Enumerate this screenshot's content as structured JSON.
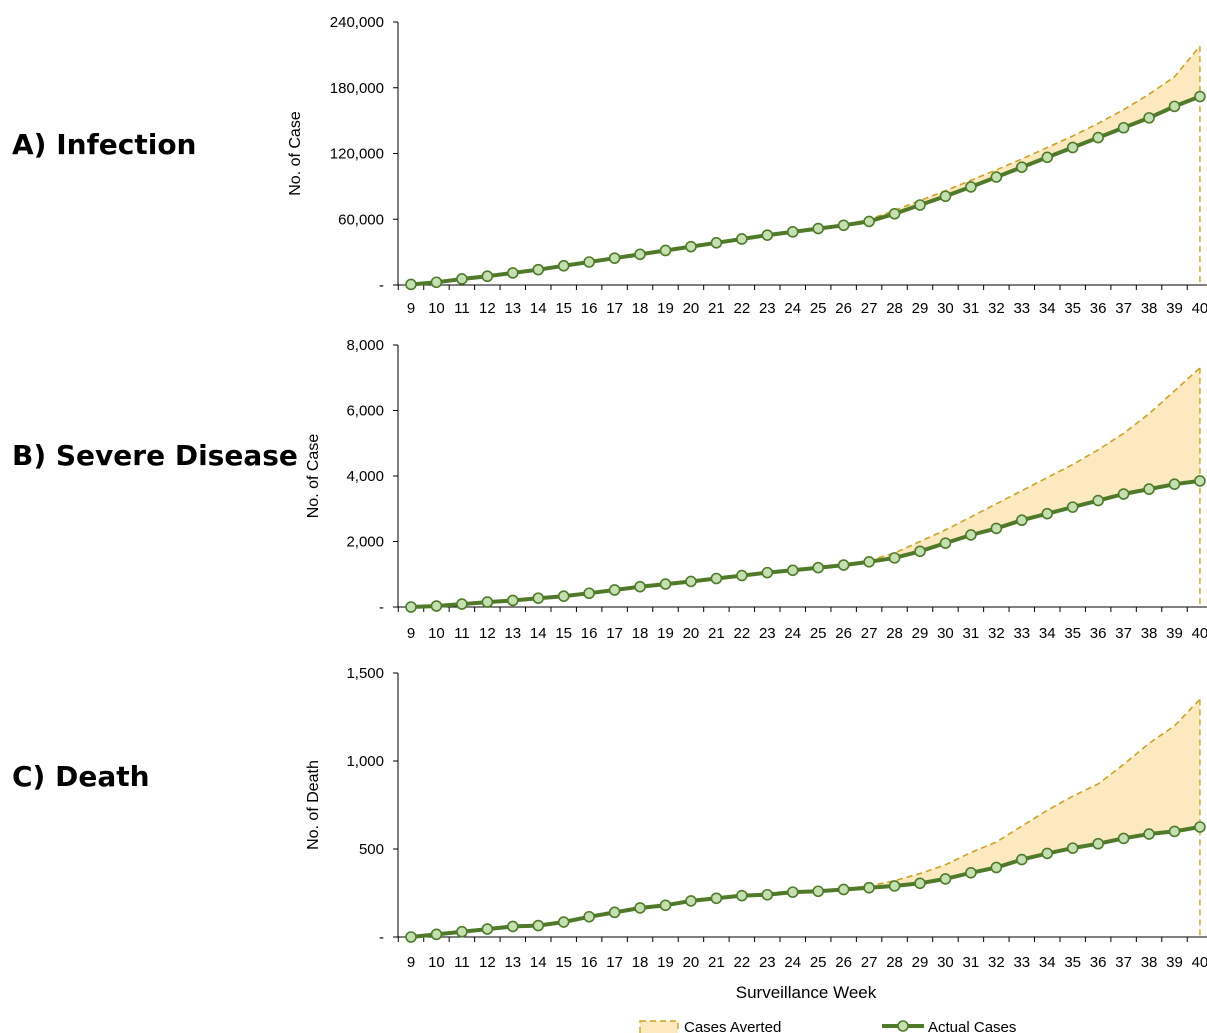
{
  "panels": [
    {
      "label": "A) Infection"
    },
    {
      "label": "B) Severe Disease"
    },
    {
      "label": "C) Death"
    }
  ],
  "xlabel": "Surveillance Week",
  "legend": {
    "averted": "Cases Averted",
    "actual": "Actual Cases"
  },
  "colors": {
    "actual_line": "#4e7a2a",
    "marker_fill": "#c4dfb0",
    "averted_fill": "#fde9bf",
    "averted_line": "#c9a227"
  },
  "chart_data": [
    {
      "type": "area",
      "ylabel": "No. of Case",
      "ylim": [
        0,
        240000
      ],
      "yticks": [
        0,
        60000,
        120000,
        180000,
        240000
      ],
      "ytick_labels": [
        "-",
        "60,000",
        "120,000",
        "180,000",
        "240,000"
      ],
      "x": [
        9,
        10,
        11,
        12,
        13,
        14,
        15,
        16,
        17,
        18,
        19,
        20,
        21,
        22,
        23,
        24,
        25,
        26,
        27,
        28,
        29,
        30,
        31,
        32,
        33,
        34,
        35,
        36,
        37,
        38,
        39,
        40
      ],
      "series": [
        {
          "name": "Actual Cases",
          "values": [
            500,
            2500,
            5500,
            8000,
            11000,
            14000,
            17500,
            21000,
            24500,
            28000,
            31500,
            35000,
            38500,
            42000,
            45500,
            48500,
            51500,
            54500,
            58000,
            65000,
            73000,
            81000,
            89500,
            98500,
            107500,
            116500,
            125500,
            134500,
            143500,
            152500,
            163000,
            172000
          ]
        },
        {
          "name": "Cases Averted",
          "values": [
            500,
            2500,
            5500,
            8000,
            11000,
            14000,
            17500,
            21000,
            24500,
            28000,
            31500,
            35000,
            38500,
            42000,
            45500,
            48500,
            51500,
            54500,
            60000,
            68000,
            77000,
            86000,
            95500,
            105000,
            115000,
            125500,
            136000,
            147500,
            160000,
            174000,
            190000,
            218000
          ]
        }
      ]
    },
    {
      "type": "area",
      "ylabel": "No. of Case",
      "ylim": [
        0,
        8000
      ],
      "yticks": [
        0,
        2000,
        4000,
        6000,
        8000
      ],
      "ytick_labels": [
        "-",
        "2,000",
        "4,000",
        "6,000",
        "8,000"
      ],
      "x": [
        9,
        10,
        11,
        12,
        13,
        14,
        15,
        16,
        17,
        18,
        19,
        20,
        21,
        22,
        23,
        24,
        25,
        26,
        27,
        28,
        29,
        30,
        31,
        32,
        33,
        34,
        35,
        36,
        37,
        38,
        39,
        40
      ],
      "series": [
        {
          "name": "Actual Cases",
          "values": [
            0,
            30,
            90,
            150,
            200,
            270,
            330,
            420,
            520,
            620,
            700,
            780,
            870,
            960,
            1050,
            1120,
            1200,
            1280,
            1380,
            1500,
            1700,
            1950,
            2200,
            2400,
            2650,
            2850,
            3050,
            3250,
            3450,
            3600,
            3750,
            3850
          ]
        },
        {
          "name": "Cases Averted",
          "values": [
            0,
            30,
            90,
            150,
            200,
            270,
            330,
            420,
            520,
            620,
            700,
            780,
            870,
            960,
            1050,
            1120,
            1200,
            1300,
            1420,
            1650,
            2000,
            2350,
            2750,
            3150,
            3550,
            3950,
            4350,
            4800,
            5300,
            5900,
            6600,
            7300
          ]
        }
      ]
    },
    {
      "type": "area",
      "ylabel": "No. of Death",
      "ylim": [
        0,
        1500
      ],
      "yticks": [
        0,
        500,
        1000,
        1500
      ],
      "ytick_labels": [
        "-",
        "500",
        "1,000",
        "1,500"
      ],
      "x": [
        9,
        10,
        11,
        12,
        13,
        14,
        15,
        16,
        17,
        18,
        19,
        20,
        21,
        22,
        23,
        24,
        25,
        26,
        27,
        28,
        29,
        30,
        31,
        32,
        33,
        34,
        35,
        36,
        37,
        38,
        39,
        40
      ],
      "series": [
        {
          "name": "Actual Cases",
          "values": [
            0,
            15,
            30,
            45,
            60,
            65,
            85,
            115,
            140,
            165,
            180,
            205,
            220,
            235,
            240,
            255,
            260,
            270,
            280,
            290,
            305,
            330,
            365,
            395,
            440,
            475,
            505,
            530,
            560,
            585,
            600,
            625
          ]
        },
        {
          "name": "Cases Averted",
          "values": [
            0,
            15,
            30,
            45,
            60,
            65,
            85,
            115,
            140,
            165,
            180,
            205,
            220,
            235,
            250,
            260,
            265,
            275,
            290,
            320,
            360,
            410,
            480,
            540,
            630,
            720,
            800,
            870,
            980,
            1100,
            1200,
            1350
          ]
        }
      ]
    }
  ]
}
